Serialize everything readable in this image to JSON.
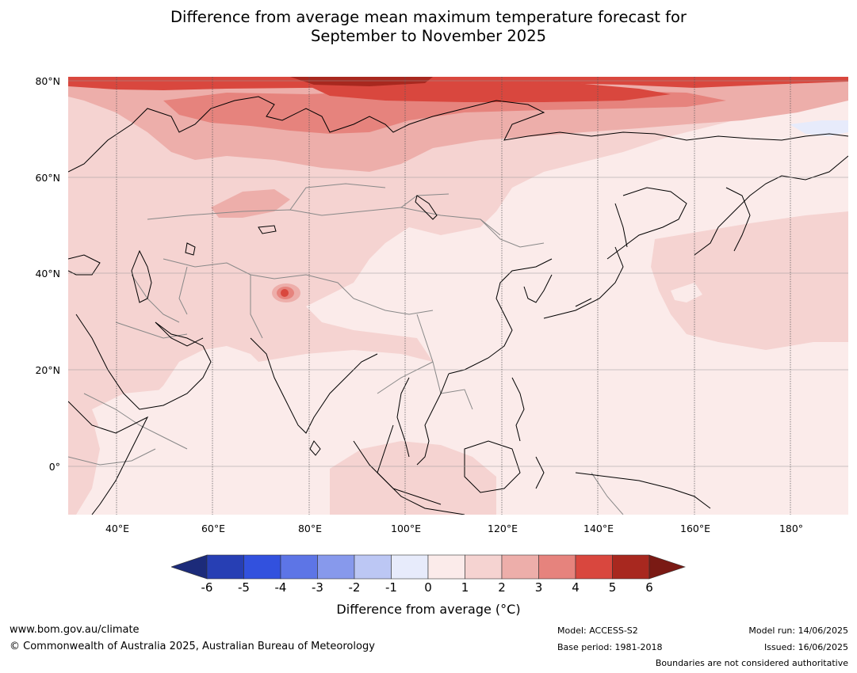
{
  "title": {
    "line1": "Difference from average mean maximum temperature forecast for",
    "line2": "September to November 2025"
  },
  "map": {
    "lat_labels": [
      "80°N",
      "60°N",
      "40°N",
      "20°N",
      "0°"
    ],
    "lon_labels": [
      "40°E",
      "60°E",
      "80°E",
      "100°E",
      "120°E",
      "140°E",
      "160°E",
      "180°"
    ],
    "lat_range": [
      -10,
      80
    ],
    "lon_range": [
      30,
      192
    ]
  },
  "colorbar": {
    "ticks": [
      "-6",
      "-5",
      "-4",
      "-3",
      "-2",
      "-1",
      "0",
      "1",
      "2",
      "3",
      "4",
      "5",
      "6"
    ],
    "colors": [
      "#1c2b7a",
      "#273fb4",
      "#3251de",
      "#5d75e6",
      "#8799ec",
      "#bcc7f4",
      "#e7ebfb",
      "#fbebea",
      "#f5d3d1",
      "#edaeaa",
      "#e6837d",
      "#d9473e",
      "#a8281f",
      "#7a1a14"
    ],
    "label": "Difference from average (°C)"
  },
  "footer": {
    "website": "www.bom.gov.au/climate",
    "copyright": "© Commonwealth of Australia 2025, Australian Bureau of Meteorology",
    "model": "Model: ACCESS-S2",
    "base_period": "Base period: 1981-2018",
    "model_run": "Model run: 14/06/2025",
    "issued": "Issued: 16/06/2025",
    "disclaimer": "Boundaries are not considered authoritative"
  }
}
